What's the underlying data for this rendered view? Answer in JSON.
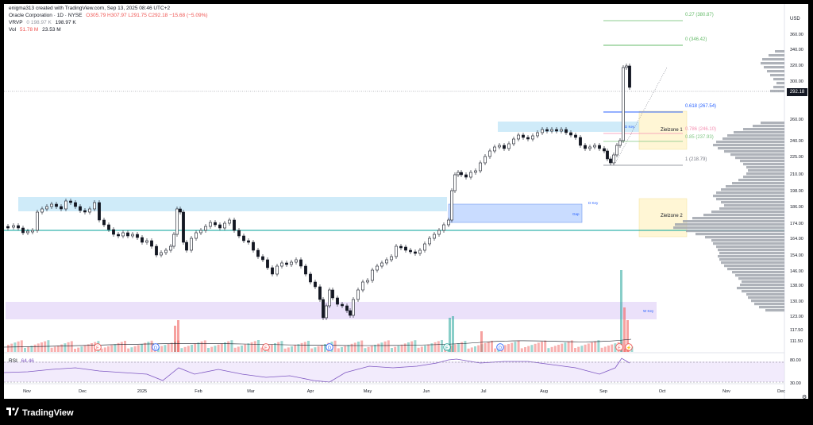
{
  "header": {
    "created_by": "enigma313 created with TradingView.com, Sep 13, 2025 08:46 UTC+2",
    "symbol": "Oracle Corporation · 1D · NYSE",
    "ohlc": "O305.79  H307.97  L291.75  C292.18  −15.68 (−5.09%)",
    "vrvp_label": "VRVP",
    "vrvp_v1": "0  198.97 K",
    "vrvp_v2": "198.97 K",
    "vol_label": "Vol",
    "vol_v1": "51.78 M",
    "vol_v2": "23.53 M",
    "rsi_label": "RSI",
    "rsi_value": "64.46"
  },
  "price_axis": {
    "currency": "USD",
    "labels": [
      "360.00",
      "340.00",
      "320.00",
      "300.00",
      "260.00",
      "240.00",
      "225.00",
      "210.00",
      "198.00",
      "186.00",
      "174.00",
      "164.00",
      "154.00",
      "146.00",
      "138.00",
      "130.00",
      "123.00",
      "117.50",
      "111.50"
    ],
    "current_price": "292.18",
    "rsi_labels": [
      "80.00",
      "30.00"
    ]
  },
  "time_axis": {
    "labels": [
      "Nov",
      "Dec",
      "2025",
      "Feb",
      "Mar",
      "Apr",
      "May",
      "Jun",
      "Jul",
      "Aug",
      "Sep",
      "Oct",
      "Nov",
      "Dec"
    ]
  },
  "fib_levels": [
    "0.27 (380.87)",
    "0 (346.42)",
    "0.618 (267.54)",
    "0.786 (246.10)",
    "0.85 (237.93)",
    "1 (218.79)"
  ],
  "zones": {
    "d_key_upper": "D Key",
    "d_key_lower": "D Key",
    "gap": "Gap",
    "w_key": "W Key",
    "zielzone1": "Zielzone 1",
    "zielzone2": "Zielzone 2"
  },
  "footer": {
    "brand": "TradingView"
  },
  "colors": {
    "up": "#26a69a",
    "down": "#ef5350",
    "candle": "#131722",
    "teal_line": "#00a19a",
    "zone_blue": "#bbe3f7",
    "zone_purple": "#e9defa",
    "zone_yellow": "#fff6d5"
  }
}
